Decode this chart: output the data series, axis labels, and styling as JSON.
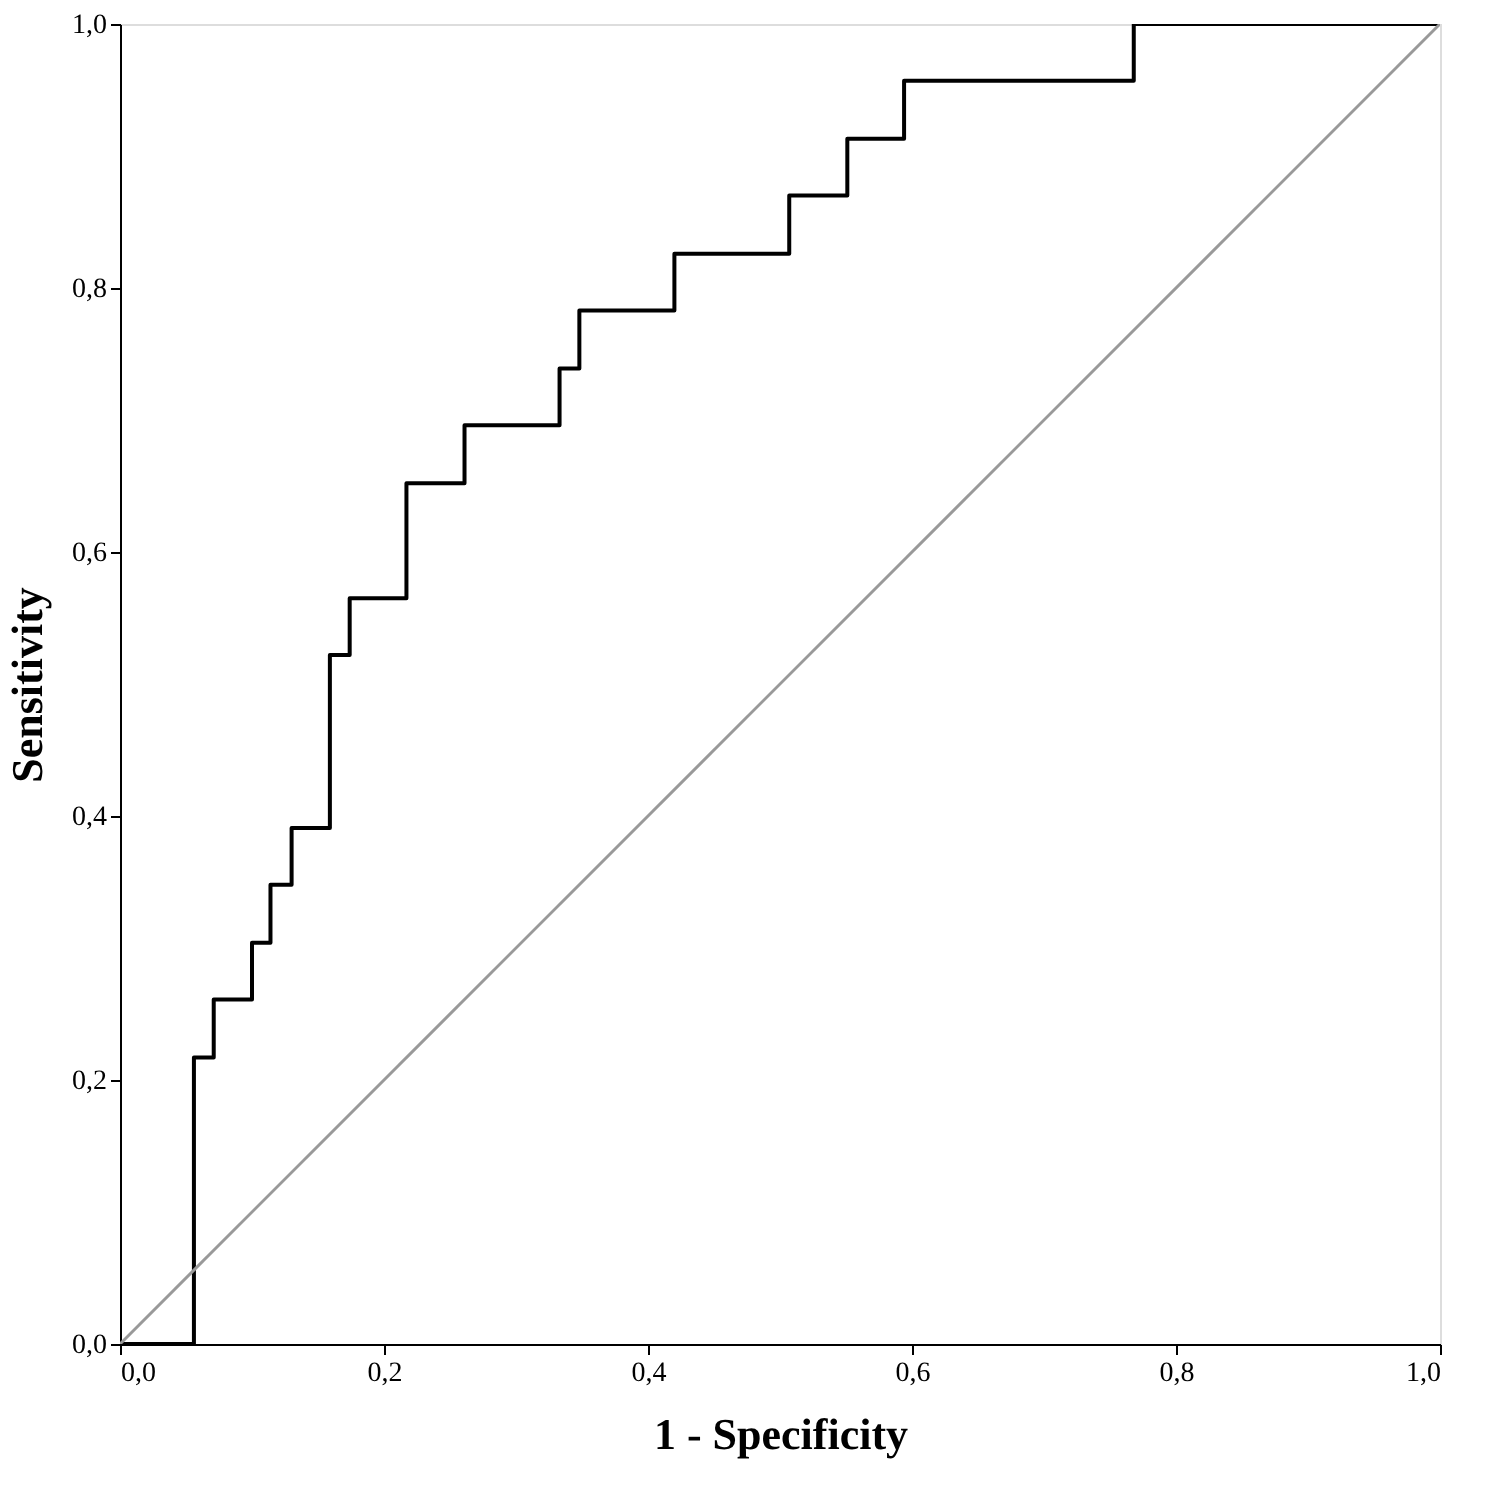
{
  "chart_data": {
    "type": "step",
    "xlabel": "1 - Specificity",
    "ylabel": "Sensitivity",
    "xlim": [
      0,
      1
    ],
    "ylim": [
      0,
      1
    ],
    "xticks": [
      {
        "value": 0,
        "label": "0,0"
      },
      {
        "value": 0.2,
        "label": "0,2"
      },
      {
        "value": 0.4,
        "label": "0,4"
      },
      {
        "value": 0.6,
        "label": "0,6"
      },
      {
        "value": 0.8,
        "label": "0,8"
      },
      {
        "value": 1,
        "label": "1,0"
      }
    ],
    "yticks": [
      {
        "value": 0,
        "label": "0,0"
      },
      {
        "value": 0.2,
        "label": "0,2"
      },
      {
        "value": 0.4,
        "label": "0,4"
      },
      {
        "value": 0.6,
        "label": "0,6"
      },
      {
        "value": 0.8,
        "label": "0,8"
      },
      {
        "value": 1,
        "label": "1,0"
      }
    ],
    "grid": false,
    "series": [
      {
        "color": "#000000",
        "x": [
          0,
          0.056,
          0.071,
          0.1,
          0.114,
          0.13,
          0.159,
          0.174,
          0.217,
          0.261,
          0.333,
          0.348,
          0.42,
          0.507,
          0.551,
          0.594,
          0.768,
          1
        ],
        "values": [
          0,
          0.217,
          0.261,
          0.304,
          0.348,
          0.391,
          0.522,
          0.565,
          0.652,
          0.696,
          0.739,
          0.783,
          0.826,
          0.87,
          0.913,
          0.957,
          1,
          1
        ]
      },
      {
        "type": "line",
        "color": "#999999",
        "x": [
          0,
          1
        ],
        "values": [
          0,
          1
        ]
      }
    ]
  }
}
